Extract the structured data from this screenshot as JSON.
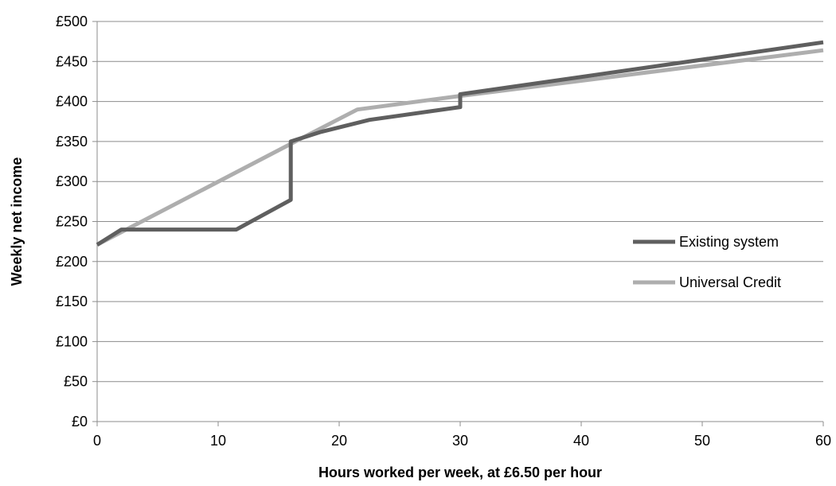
{
  "chart_data": {
    "type": "line",
    "title": "",
    "xlabel": "Hours worked per week, at £6.50 per hour",
    "ylabel": "Weekly net income",
    "xlim": [
      0,
      60
    ],
    "ylim": [
      0,
      500
    ],
    "x_ticks": [
      0,
      10,
      20,
      30,
      40,
      50,
      60
    ],
    "x_tick_labels": [
      "0",
      "10",
      "20",
      "30",
      "40",
      "50",
      "60"
    ],
    "y_ticks": [
      0,
      50,
      100,
      150,
      200,
      250,
      300,
      350,
      400,
      450,
      500
    ],
    "y_tick_labels": [
      "£0",
      "£50",
      "£100",
      "£150",
      "£200",
      "£250",
      "£300",
      "£350",
      "£400",
      "£450",
      "£500"
    ],
    "grid": "horizontal",
    "legend_position": "right",
    "series": [
      {
        "name": "Existing system",
        "color": "#5f5f5f",
        "points": [
          [
            0,
            221
          ],
          [
            2,
            240
          ],
          [
            11.5,
            240
          ],
          [
            16,
            277
          ],
          [
            16,
            350
          ],
          [
            18.5,
            362
          ],
          [
            22.5,
            377
          ],
          [
            30,
            393
          ],
          [
            30,
            409
          ],
          [
            60,
            474
          ]
        ]
      },
      {
        "name": "Universal Credit",
        "color": "#aeaeae",
        "points": [
          [
            0,
            221
          ],
          [
            16,
            347
          ],
          [
            21.5,
            390
          ],
          [
            30,
            407
          ],
          [
            60,
            464
          ]
        ]
      }
    ]
  }
}
